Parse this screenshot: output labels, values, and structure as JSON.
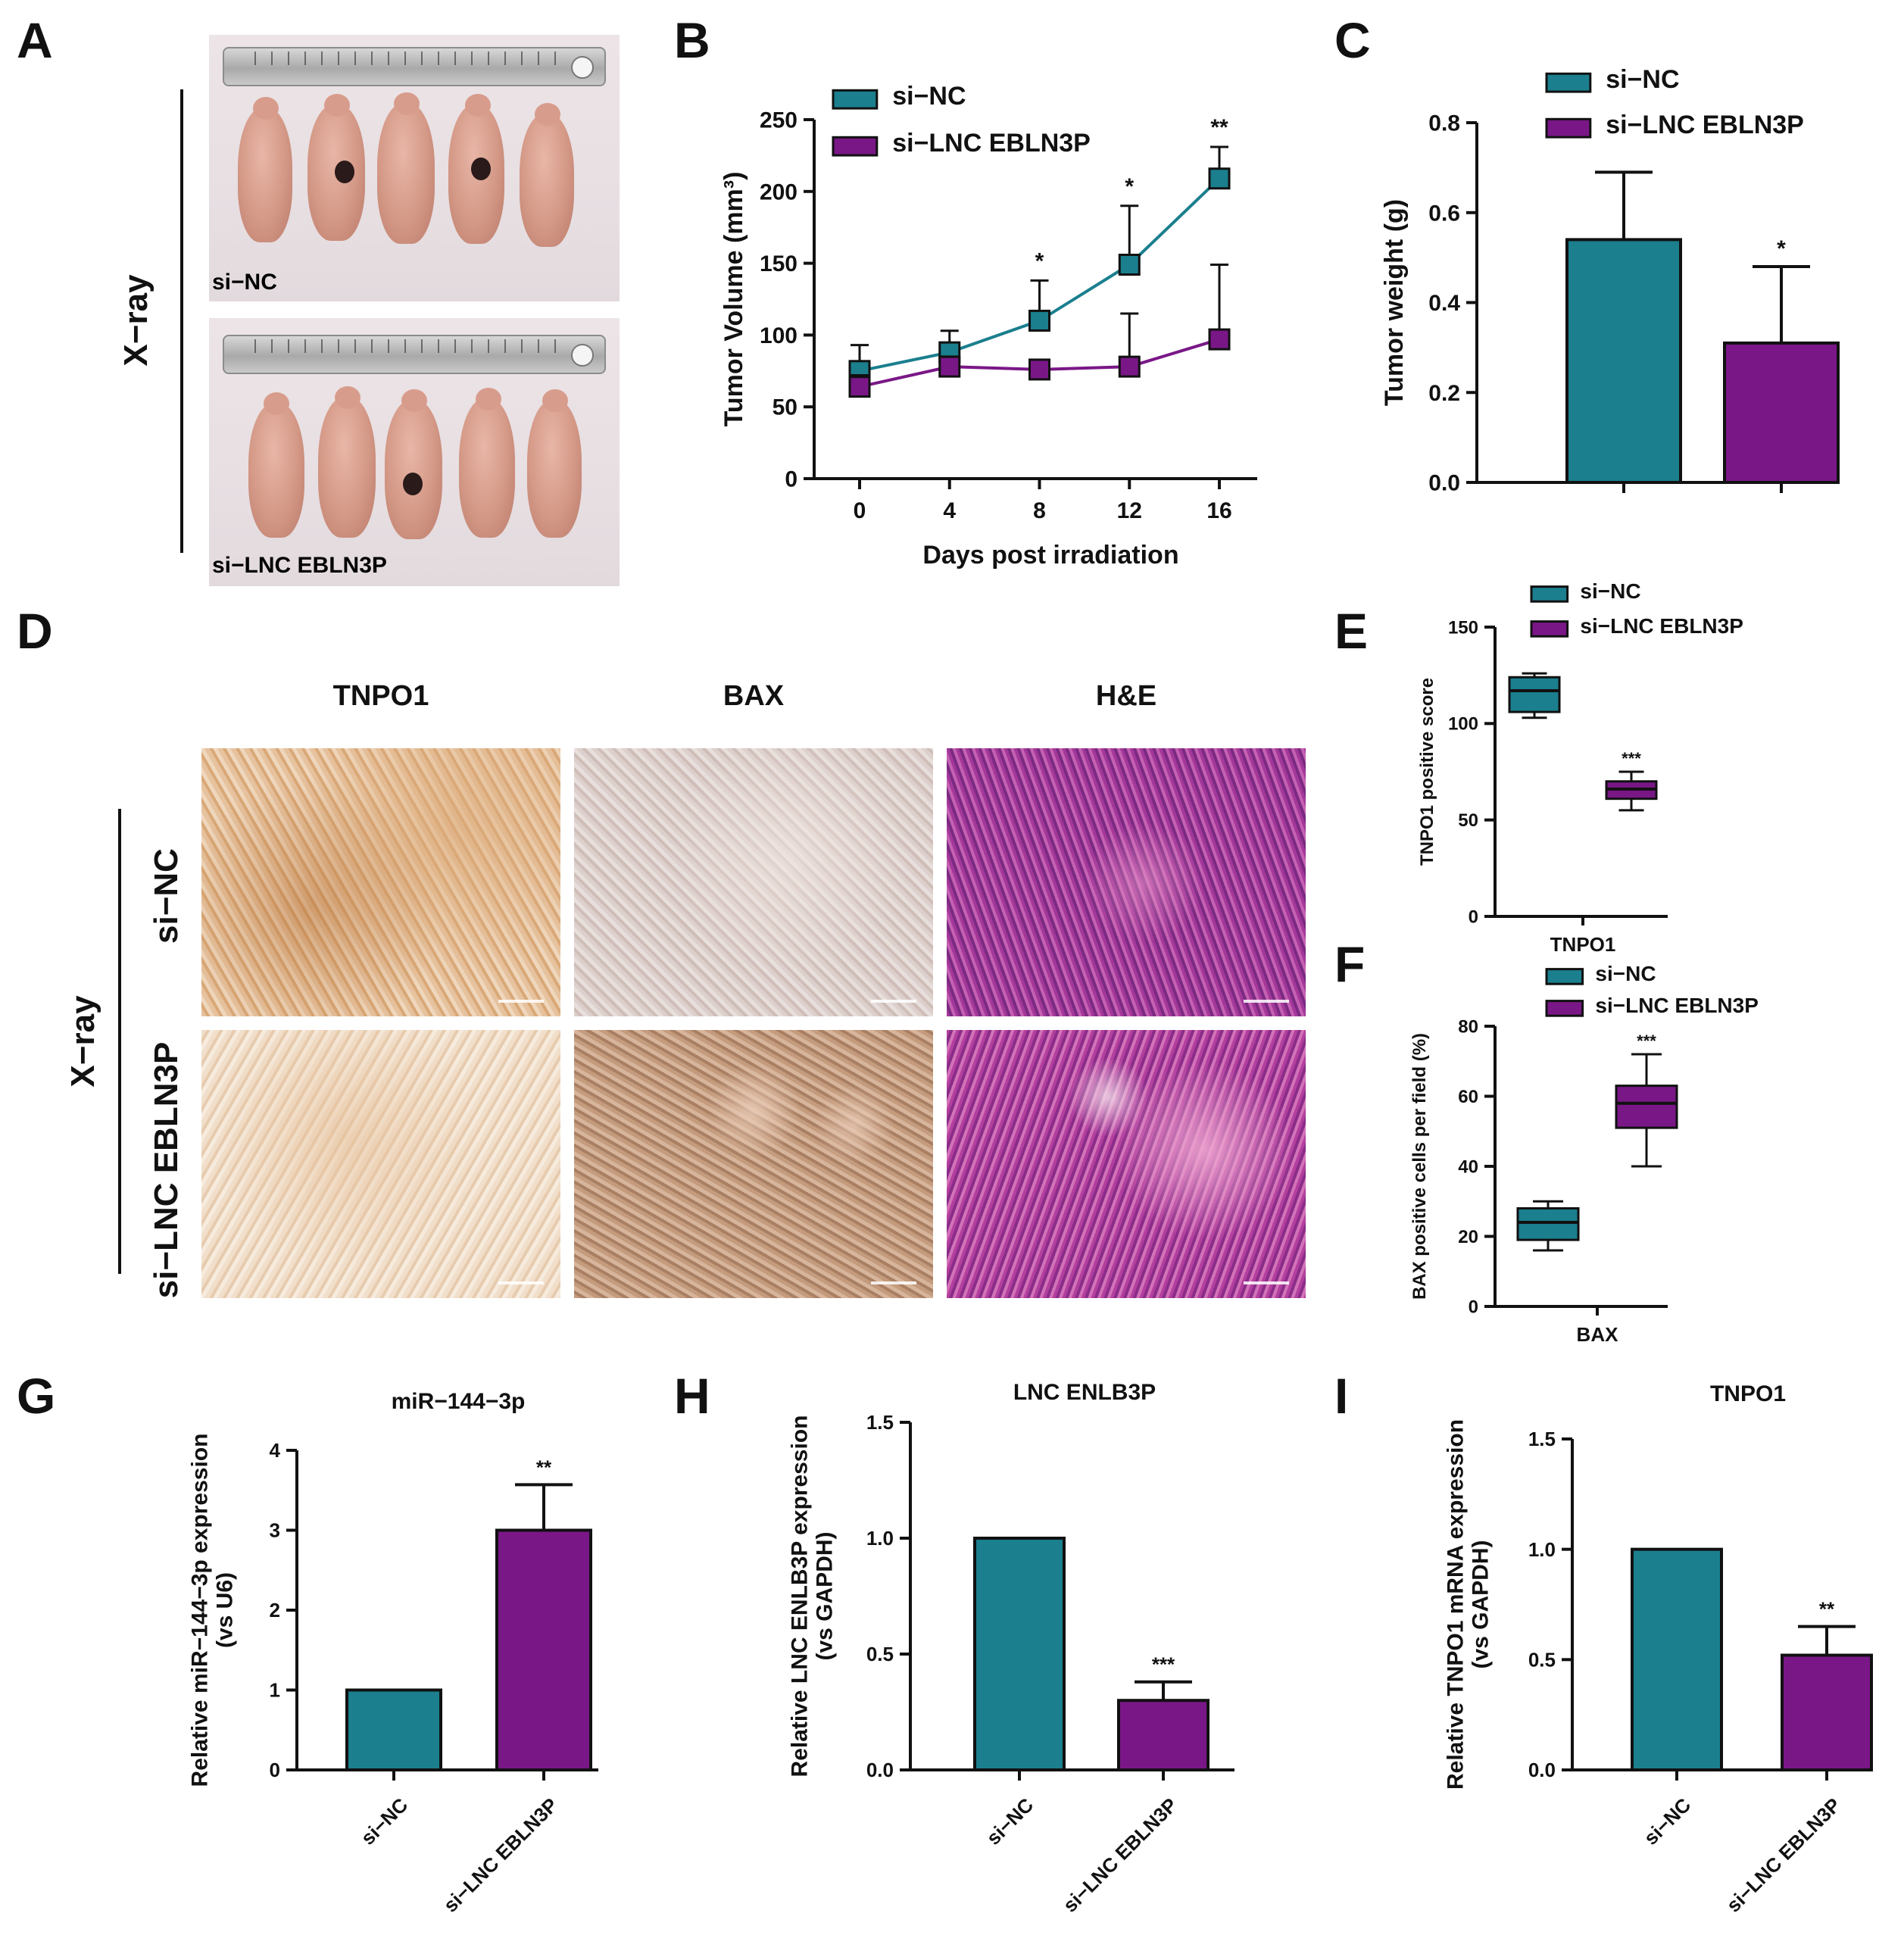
{
  "colors": {
    "si_nc": "#1b7f8e",
    "si_lnc": "#7a1787"
  },
  "panel_a": {
    "letter": "A",
    "group_label": "X−ray",
    "top_label": "si−NC",
    "bottom_label": "si−LNC EBLN3P"
  },
  "panel_d": {
    "letter": "D",
    "columns": [
      "TNPO1",
      "BAX",
      "H&E"
    ],
    "row_top": "si−NC",
    "row_bottom": "si−LNC EBLN3P",
    "group_label": "X−ray"
  },
  "chart_data": [
    {
      "panel": "B",
      "type": "line",
      "xlabel": "Days post irradiation",
      "ylabel": "Tumor Volume (mm³)",
      "x": [
        0,
        4,
        8,
        12,
        16
      ],
      "ylim": [
        0,
        250
      ],
      "yticks": [
        0,
        50,
        100,
        150,
        200,
        250
      ],
      "legend": "top-left",
      "series": [
        {
          "name": "si−NC",
          "values": [
            75,
            88,
            110,
            149,
            209
          ],
          "errors": [
            18,
            15,
            28,
            41,
            22
          ]
        },
        {
          "name": "si−LNC EBLN3P",
          "values": [
            64,
            78,
            76,
            78,
            97
          ],
          "errors": [
            8,
            7,
            6,
            37,
            52
          ]
        }
      ],
      "annotations": [
        {
          "x": 8,
          "text": "*"
        },
        {
          "x": 12,
          "text": "*"
        },
        {
          "x": 16,
          "text": "**"
        }
      ]
    },
    {
      "panel": "C",
      "type": "bar",
      "ylabel": "Tumor weight (g)",
      "ylim": [
        0,
        0.8
      ],
      "yticks": [
        "0.0",
        "0.2",
        "0.4",
        "0.6",
        "0.8"
      ],
      "legend": "top",
      "categories": [
        "si−NC",
        "si−LNC EBLN3P"
      ],
      "values": [
        0.54,
        0.31
      ],
      "errors": [
        0.15,
        0.17
      ],
      "annotations": [
        "",
        "*"
      ]
    },
    {
      "panel": "E",
      "type": "box",
      "ylabel": "TNPO1 positive score",
      "xlabel": "TNPO1",
      "ylim": [
        0,
        150
      ],
      "yticks": [
        0,
        50,
        100,
        150
      ],
      "legend": "top",
      "series": [
        {
          "name": "si−NC",
          "min": 103,
          "q1": 106,
          "median": 117,
          "q3": 124,
          "max": 126
        },
        {
          "name": "si−LNC EBLN3P",
          "min": 55,
          "q1": 61,
          "median": 66,
          "q3": 70,
          "max": 75
        }
      ],
      "annotation": "***"
    },
    {
      "panel": "F",
      "type": "box",
      "ylabel": "BAX positive cells per field (%)",
      "xlabel": "BAX",
      "ylim": [
        0,
        80
      ],
      "yticks": [
        0,
        20,
        40,
        60,
        80
      ],
      "legend": "top",
      "series": [
        {
          "name": "si−NC",
          "min": 16,
          "q1": 19,
          "median": 24,
          "q3": 28,
          "max": 30
        },
        {
          "name": "si−LNC EBLN3P",
          "min": 40,
          "q1": 51,
          "median": 58,
          "q3": 63,
          "max": 72
        }
      ],
      "annotation": "***"
    },
    {
      "panel": "G",
      "type": "bar",
      "title": "miR−144−3p",
      "ylabel": "Relative miR−144−3p expression\n(vs U6)",
      "ylim": [
        0,
        4
      ],
      "yticks": [
        "0",
        "1",
        "2",
        "3",
        "4"
      ],
      "categories": [
        "si−NC",
        "si−LNC EBLN3P"
      ],
      "values": [
        1.0,
        3.0
      ],
      "errors": [
        0,
        0.57
      ],
      "annotations": [
        "",
        "**"
      ]
    },
    {
      "panel": "H",
      "type": "bar",
      "title": "LNC ENLB3P",
      "ylabel": "Relative LNC ENLB3P  expression\n(vs GAPDH)",
      "ylim": [
        0,
        1.5
      ],
      "yticks": [
        "0.0",
        "0.5",
        "1.0",
        "1.5"
      ],
      "categories": [
        "si−NC",
        "si−LNC EBLN3P"
      ],
      "values": [
        1.0,
        0.3
      ],
      "errors": [
        0,
        0.08
      ],
      "annotations": [
        "",
        "***"
      ]
    },
    {
      "panel": "I",
      "type": "bar",
      "title": "TNPO1",
      "ylabel": "Relative TNPO1 mRNA expression\n(vs GAPDH)",
      "ylim": [
        0,
        1.5
      ],
      "yticks": [
        "0.0",
        "0.5",
        "1.0",
        "1.5"
      ],
      "categories": [
        "si−NC",
        "si−LNC EBLN3P"
      ],
      "values": [
        1.0,
        0.52
      ],
      "errors": [
        0,
        0.13
      ],
      "annotations": [
        "",
        "**"
      ]
    }
  ]
}
